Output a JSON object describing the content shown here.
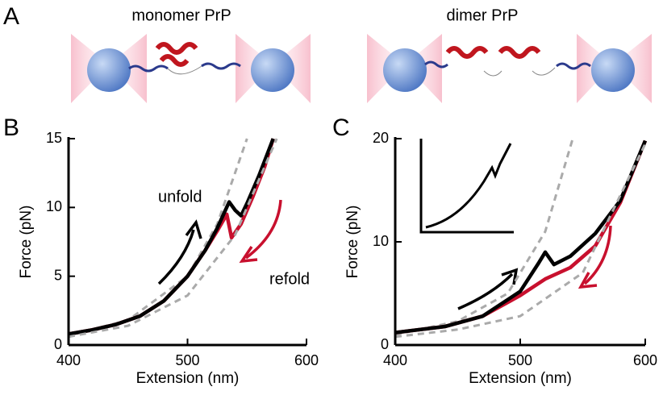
{
  "panel_a": {
    "label": "A",
    "titles": [
      "monomer PrP",
      "dimer PrP"
    ]
  },
  "chart_data": [
    {
      "type": "line",
      "label": "B",
      "xlabel": "Extension (nm)",
      "ylabel": "Force (pN)",
      "xlim": [
        400,
        600
      ],
      "xticks": [
        400,
        500,
        600
      ],
      "ylim": [
        0,
        15
      ],
      "yticks": [
        0,
        5,
        10,
        15
      ],
      "annotations": [
        {
          "text": "unfold",
          "color": "#000000"
        },
        {
          "text": "refold",
          "color": "#c8102e"
        }
      ],
      "series": [
        {
          "color": "#aaaaaa",
          "style": "dashed",
          "x": [
            400,
            450,
            500,
            525,
            550
          ],
          "values": [
            0.7,
            1.8,
            5.0,
            8.8,
            15
          ]
        },
        {
          "color": "#c8102e",
          "style": "solid",
          "x": [
            400,
            420,
            440,
            460,
            480,
            500,
            515,
            525,
            533,
            537,
            545,
            555,
            565,
            572
          ],
          "values": [
            0.8,
            1.1,
            1.5,
            2.1,
            3.2,
            5.0,
            6.9,
            8.3,
            9.5,
            7.8,
            8.8,
            10.8,
            13,
            15
          ]
        },
        {
          "color": "#000000",
          "style": "solid",
          "x": [
            400,
            420,
            440,
            460,
            480,
            500,
            515,
            525,
            535,
            540,
            545,
            550,
            560,
            572
          ],
          "values": [
            0.8,
            1.1,
            1.5,
            2.1,
            3.2,
            5.0,
            6.9,
            8.5,
            10.4,
            9.8,
            9.4,
            10.3,
            12.3,
            15
          ]
        },
        {
          "color": "#aaaaaa",
          "style": "dashed",
          "x": [
            400,
            450,
            500,
            540,
            575
          ],
          "values": [
            0.6,
            1.4,
            3.6,
            8.0,
            15
          ]
        }
      ]
    },
    {
      "type": "line",
      "label": "C",
      "xlabel": "Extension (nm)",
      "ylabel": "Force (pN)",
      "xlim": [
        400,
        600
      ],
      "xticks": [
        400,
        500,
        600
      ],
      "ylim": [
        0,
        20
      ],
      "yticks": [
        0,
        10,
        20
      ],
      "annotations": [],
      "series": [
        {
          "color": "#aaaaaa",
          "style": "dashed",
          "x": [
            400,
            450,
            490,
            520,
            542
          ],
          "values": [
            1.0,
            2.3,
            5.0,
            11,
            20
          ]
        },
        {
          "color": "#c8102e",
          "style": "solid",
          "x": [
            400,
            440,
            470,
            500,
            520,
            540,
            560,
            580,
            600
          ],
          "values": [
            1.2,
            1.8,
            2.8,
            4.8,
            6.4,
            7.5,
            9.6,
            13.8,
            19.8
          ]
        },
        {
          "color": "#000000",
          "style": "solid",
          "x": [
            400,
            440,
            470,
            500,
            515,
            520,
            527,
            540,
            560,
            580,
            600
          ],
          "values": [
            1.2,
            1.8,
            2.8,
            5.2,
            8.0,
            9.0,
            7.8,
            8.6,
            10.8,
            14,
            19.8
          ]
        },
        {
          "color": "#aaaaaa",
          "style": "dashed",
          "x": [
            400,
            450,
            500,
            550,
            600
          ],
          "values": [
            0.8,
            1.5,
            2.8,
            7,
            19.5
          ]
        }
      ]
    }
  ]
}
